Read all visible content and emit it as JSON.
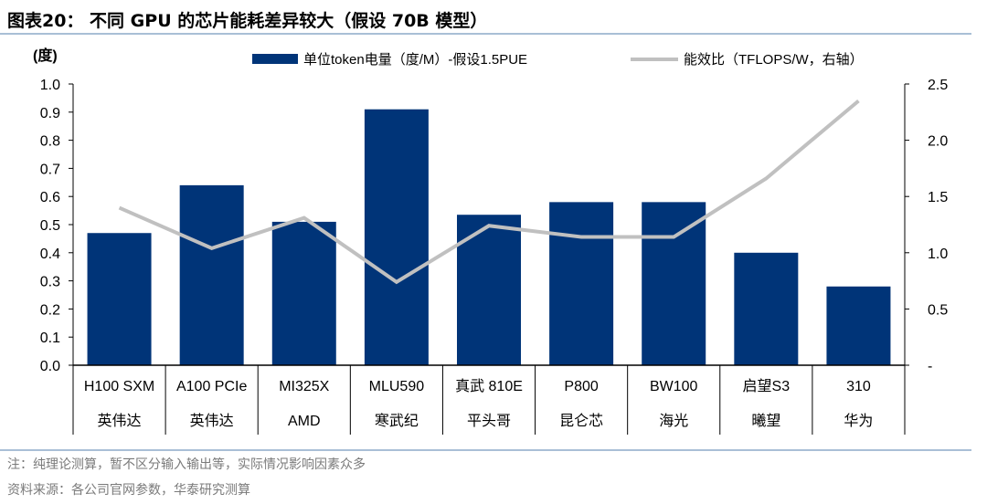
{
  "title": "图表20：  不同 GPU 的芯片能耗差异较大（假设 70B 模型）",
  "notes": [
    "注：纯理论测算，暂不区分输入输出等，实际情况影响因素众多",
    "资料来源：各公司官网参数，华泰研究测算"
  ],
  "chart_data": {
    "type": "bar+line",
    "left_unit": "(度)",
    "categories": [
      "H100 SXM",
      "A100 PCIe",
      "MI325X",
      "MLU590",
      "真武 810E",
      "P800",
      "BW100",
      "启望S3",
      "310"
    ],
    "vendors": [
      "英伟达",
      "英伟达",
      "AMD",
      "寒武纪",
      "平头哥",
      "昆仑芯",
      "海光",
      "曦望",
      "华为"
    ],
    "series": [
      {
        "name": "单位token电量（度/M）-假设1.5PUE",
        "axis": "left",
        "type": "bar",
        "color": "#003478",
        "values": [
          0.47,
          0.64,
          0.51,
          0.91,
          0.535,
          0.58,
          0.58,
          0.4,
          0.28
        ]
      },
      {
        "name": "能效比（TFLOPS/W，右轴）",
        "axis": "right",
        "type": "line",
        "color": "#c0c0c0",
        "values": [
          1.4,
          1.04,
          1.31,
          0.74,
          1.24,
          1.14,
          1.14,
          1.66,
          2.35
        ]
      }
    ],
    "ylim_left": [
      0,
      1.0
    ],
    "yticks_left": [
      "0.0",
      "0.1",
      "0.2",
      "0.3",
      "0.4",
      "0.5",
      "0.6",
      "0.7",
      "0.8",
      "0.9",
      "1.0"
    ],
    "ylim_right": [
      0,
      2.5
    ],
    "yticks_right": [
      "-",
      "0.5",
      "1.0",
      "1.5",
      "2.0",
      "2.5"
    ],
    "legend": "top"
  }
}
